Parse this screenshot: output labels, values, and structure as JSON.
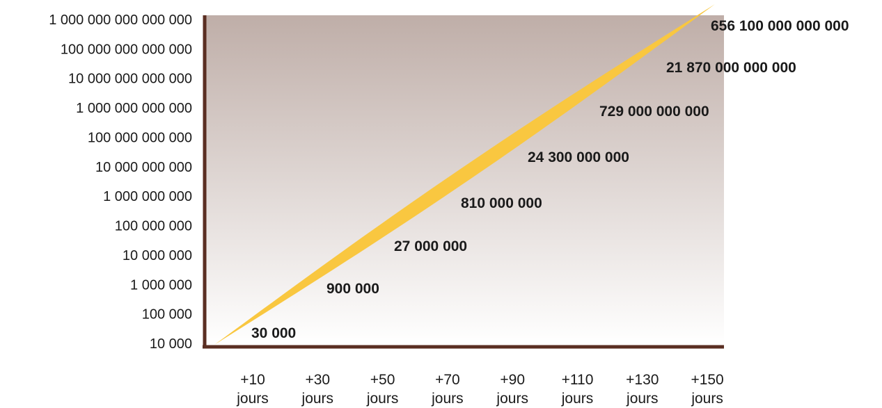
{
  "colors": {
    "band": "#f9c740",
    "axis": "#5a2e22",
    "title": "#f6be2c",
    "plot_top": "#bfaea8",
    "plot_bottom": "#ffffff"
  },
  "chart_data": {
    "type": "line",
    "title": "",
    "xlabel": "",
    "ylabel": "",
    "y_scale": "log10",
    "ylim": [
      10000,
      1000000000000000
    ],
    "grid": false,
    "legend": "none",
    "y_ticks": [
      {
        "value": 10000,
        "label": "10 000"
      },
      {
        "value": 100000,
        "label": "100 000"
      },
      {
        "value": 1000000,
        "label": "1 000 000"
      },
      {
        "value": 10000000,
        "label": "10  000 000"
      },
      {
        "value": 100000000,
        "label": "100  000 000"
      },
      {
        "value": 1000000000,
        "label": "1 000 000 000"
      },
      {
        "value": 10000000000,
        "label": "10 000 000 000"
      },
      {
        "value": 100000000000,
        "label": "100 000 000 000"
      },
      {
        "value": 1000000000000,
        "label": "1 000 000 000 000"
      },
      {
        "value": 10000000000000,
        "label": "10 000 000 000 000"
      },
      {
        "value": 100000000000000,
        "label": "100 000 000 000 000"
      },
      {
        "value": 1000000000000000,
        "label": "1 000 000 000 000 000"
      }
    ],
    "x_ticks": [
      {
        "line1": "+10",
        "line2": "jours"
      },
      {
        "line1": "+30",
        "line2": "jours"
      },
      {
        "line1": "+50",
        "line2": "jours"
      },
      {
        "line1": "+70",
        "line2": "jours"
      },
      {
        "line1": "+90",
        "line2": "jours"
      },
      {
        "line1": "+110",
        "line2": "jours"
      },
      {
        "line1": "+130",
        "line2": "jours"
      },
      {
        "line1": "+150",
        "line2": "jours"
      }
    ],
    "x": [
      10,
      30,
      50,
      70,
      90,
      110,
      130,
      150
    ],
    "series": [
      {
        "values": [
          30000,
          900000,
          27000000,
          810000000,
          24300000000,
          729000000000,
          21870000000000,
          656100000000000
        ],
        "labels": [
          "30 000",
          "900 000",
          "27 000 000",
          "810 000 000",
          "24 300 000 000",
          "729 000 000 000",
          "21 870 000 000 000",
          "656 100 000 000 000"
        ]
      }
    ]
  }
}
